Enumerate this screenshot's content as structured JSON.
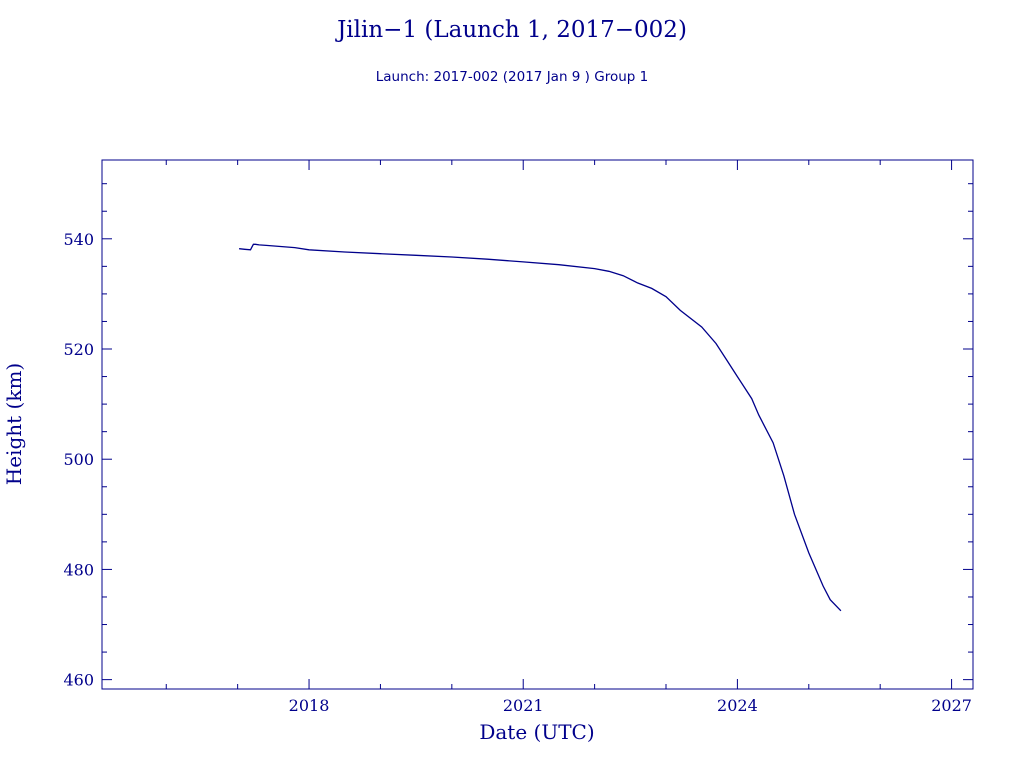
{
  "chart_data": {
    "type": "line",
    "title": "Jilin−1 (Launch 1, 2017−002)",
    "subtitle": "Launch: 2017-002  (2017 Jan  9 )  Group 1",
    "xlabel": "Date (UTC)",
    "ylabel": "Height (km)",
    "xlim": [
      2015.1,
      2027.3
    ],
    "ylim": [
      458.3,
      554.3
    ],
    "x_ticks": [
      2018,
      2021,
      2024,
      2027
    ],
    "x_tick_labels": [
      "2018",
      "2021",
      "2024",
      "2027"
    ],
    "y_ticks": [
      460,
      480,
      500,
      520,
      540
    ],
    "y_tick_labels": [
      "460",
      "480",
      "500",
      "520",
      "540"
    ],
    "grid": false,
    "color": "#00008b",
    "series": [
      {
        "x": [
          2017.02,
          2017.1,
          2017.18,
          2017.2,
          2017.22,
          2017.25,
          2017.3,
          2017.4,
          2017.6,
          2017.8,
          2018.0,
          2018.5,
          2019.0,
          2019.5,
          2020.0,
          2020.5,
          2021.0,
          2021.5,
          2022.0,
          2022.2,
          2022.4,
          2022.6,
          2022.8,
          2023.0,
          2023.2,
          2023.5,
          2023.7,
          2023.85,
          2024.0,
          2024.2,
          2024.3,
          2024.5,
          2024.65,
          2024.8,
          2025.0,
          2025.2,
          2025.3,
          2025.45
        ],
        "y": [
          538.2,
          538.1,
          538.0,
          538.5,
          539.0,
          539.0,
          538.9,
          538.8,
          538.6,
          538.4,
          538.0,
          537.6,
          537.3,
          537.0,
          536.7,
          536.3,
          535.8,
          535.3,
          534.6,
          534.1,
          533.3,
          532.0,
          531.0,
          529.5,
          527.0,
          524.0,
          521.0,
          518.0,
          515.0,
          511.0,
          508.0,
          503.0,
          497.0,
          490.0,
          483.0,
          477.0,
          474.5,
          472.5
        ]
      }
    ]
  }
}
